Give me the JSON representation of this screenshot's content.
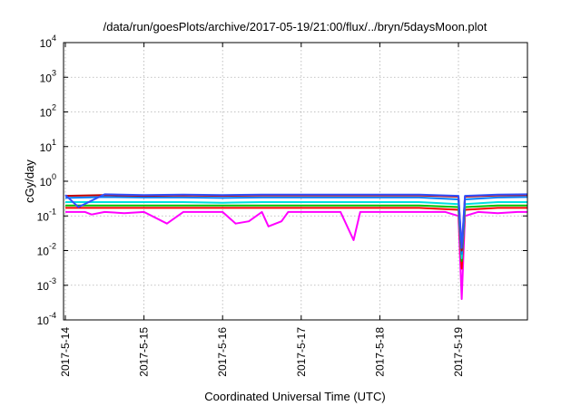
{
  "chart_data": {
    "type": "line",
    "title": "/data/run/goesPlots/archive/2017-05-19/21:00/flux/../bryn/5daysMoon.plot",
    "xlabel": "Coordinated Universal Time (UTC)",
    "ylabel": "cGy/day",
    "yscale": "log",
    "ylim": [
      0.0001,
      10000
    ],
    "xlim": [
      "2017-05-14T00:00",
      "2017-05-19T21:00"
    ],
    "grid": true,
    "x_ticks": [
      "2017-5-14",
      "2017-5-15",
      "2017-5-16",
      "2017-5-17",
      "2017-5-18",
      "2017-5-19"
    ],
    "y_ticks": [
      {
        "base": "10",
        "exp": "-4"
      },
      {
        "base": "10",
        "exp": "-3"
      },
      {
        "base": "10",
        "exp": "-2"
      },
      {
        "base": "10",
        "exp": "-1"
      },
      {
        "base": "10",
        "exp": "0"
      },
      {
        "base": "10",
        "exp": "1"
      },
      {
        "base": "10",
        "exp": "2"
      },
      {
        "base": "10",
        "exp": "3"
      },
      {
        "base": "10",
        "exp": "4"
      }
    ],
    "series": [
      {
        "color": "#ff00ff",
        "values": [
          [
            "2017-05-14T00:00",
            0.13
          ],
          [
            "2017-05-14T06:00",
            0.13
          ],
          [
            "2017-05-14T08:00",
            0.11
          ],
          [
            "2017-05-14T12:00",
            0.13
          ],
          [
            "2017-05-14T18:00",
            0.12
          ],
          [
            "2017-05-15T00:00",
            0.13
          ],
          [
            "2017-05-15T07:00",
            0.06
          ],
          [
            "2017-05-15T12:00",
            0.13
          ],
          [
            "2017-05-15T18:00",
            0.13
          ],
          [
            "2017-05-16T00:00",
            0.13
          ],
          [
            "2017-05-16T04:00",
            0.06
          ],
          [
            "2017-05-16T08:00",
            0.07
          ],
          [
            "2017-05-16T12:00",
            0.13
          ],
          [
            "2017-05-16T14:00",
            0.05
          ],
          [
            "2017-05-16T18:00",
            0.07
          ],
          [
            "2017-05-16T20:00",
            0.13
          ],
          [
            "2017-05-17T00:00",
            0.13
          ],
          [
            "2017-05-17T12:00",
            0.13
          ],
          [
            "2017-05-17T16:00",
            0.02
          ],
          [
            "2017-05-17T18:00",
            0.13
          ],
          [
            "2017-05-18T00:00",
            0.13
          ],
          [
            "2017-05-18T12:00",
            0.13
          ],
          [
            "2017-05-18T20:00",
            0.13
          ],
          [
            "2017-05-19T00:00",
            0.1
          ],
          [
            "2017-05-19T01:00",
            0.0004
          ],
          [
            "2017-05-19T02:00",
            0.1
          ],
          [
            "2017-05-19T06:00",
            0.13
          ],
          [
            "2017-05-19T12:00",
            0.12
          ],
          [
            "2017-05-19T18:00",
            0.13
          ],
          [
            "2017-05-19T21:00",
            0.13
          ]
        ]
      },
      {
        "color": "#ff0000",
        "values": [
          [
            "2017-05-14T00:00",
            0.17
          ],
          [
            "2017-05-14T12:00",
            0.17
          ],
          [
            "2017-05-15T00:00",
            0.17
          ],
          [
            "2017-05-15T12:00",
            0.17
          ],
          [
            "2017-05-16T00:00",
            0.17
          ],
          [
            "2017-05-16T12:00",
            0.17
          ],
          [
            "2017-05-17T00:00",
            0.17
          ],
          [
            "2017-05-17T12:00",
            0.17
          ],
          [
            "2017-05-18T00:00",
            0.17
          ],
          [
            "2017-05-18T12:00",
            0.17
          ],
          [
            "2017-05-19T00:00",
            0.15
          ],
          [
            "2017-05-19T01:00",
            0.003
          ],
          [
            "2017-05-19T02:00",
            0.15
          ],
          [
            "2017-05-19T12:00",
            0.17
          ],
          [
            "2017-05-19T21:00",
            0.17
          ]
        ]
      },
      {
        "color": "#00c000",
        "values": [
          [
            "2017-05-14T00:00",
            0.2
          ],
          [
            "2017-05-14T12:00",
            0.2
          ],
          [
            "2017-05-15T00:00",
            0.2
          ],
          [
            "2017-05-15T12:00",
            0.2
          ],
          [
            "2017-05-16T00:00",
            0.2
          ],
          [
            "2017-05-16T12:00",
            0.2
          ],
          [
            "2017-05-17T00:00",
            0.2
          ],
          [
            "2017-05-17T12:00",
            0.2
          ],
          [
            "2017-05-18T00:00",
            0.2
          ],
          [
            "2017-05-18T12:00",
            0.2
          ],
          [
            "2017-05-19T00:00",
            0.18
          ],
          [
            "2017-05-19T01:00",
            0.005
          ],
          [
            "2017-05-19T02:00",
            0.18
          ],
          [
            "2017-05-19T12:00",
            0.2
          ],
          [
            "2017-05-19T21:00",
            0.2
          ]
        ]
      },
      {
        "color": "#00e0e0",
        "values": [
          [
            "2017-05-14T00:00",
            0.25
          ],
          [
            "2017-05-14T12:00",
            0.25
          ],
          [
            "2017-05-15T00:00",
            0.25
          ],
          [
            "2017-05-15T12:00",
            0.25
          ],
          [
            "2017-05-16T00:00",
            0.24
          ],
          [
            "2017-05-16T12:00",
            0.25
          ],
          [
            "2017-05-17T00:00",
            0.25
          ],
          [
            "2017-05-17T12:00",
            0.25
          ],
          [
            "2017-05-18T00:00",
            0.25
          ],
          [
            "2017-05-18T12:00",
            0.25
          ],
          [
            "2017-05-19T00:00",
            0.22
          ],
          [
            "2017-05-19T01:00",
            0.006
          ],
          [
            "2017-05-19T02:00",
            0.22
          ],
          [
            "2017-05-19T12:00",
            0.25
          ],
          [
            "2017-05-19T21:00",
            0.25
          ]
        ]
      },
      {
        "color": "#0080ff",
        "values": [
          [
            "2017-05-14T00:00",
            0.33
          ],
          [
            "2017-05-14T12:00",
            0.35
          ],
          [
            "2017-05-15T00:00",
            0.34
          ],
          [
            "2017-05-15T12:00",
            0.34
          ],
          [
            "2017-05-16T00:00",
            0.33
          ],
          [
            "2017-05-16T12:00",
            0.34
          ],
          [
            "2017-05-17T00:00",
            0.34
          ],
          [
            "2017-05-17T12:00",
            0.34
          ],
          [
            "2017-05-18T00:00",
            0.34
          ],
          [
            "2017-05-18T12:00",
            0.34
          ],
          [
            "2017-05-19T00:00",
            0.3
          ],
          [
            "2017-05-19T01:00",
            0.008
          ],
          [
            "2017-05-19T02:00",
            0.3
          ],
          [
            "2017-05-19T12:00",
            0.34
          ],
          [
            "2017-05-19T21:00",
            0.35
          ]
        ]
      },
      {
        "color": "#c00000",
        "values": [
          [
            "2017-05-14T00:00",
            0.38
          ],
          [
            "2017-05-14T12:00",
            0.4
          ],
          [
            "2017-05-15T00:00",
            0.38
          ],
          [
            "2017-05-15T12:00",
            0.39
          ],
          [
            "2017-05-16T00:00",
            0.38
          ],
          [
            "2017-05-16T12:00",
            0.39
          ],
          [
            "2017-05-17T00:00",
            0.39
          ],
          [
            "2017-05-17T12:00",
            0.39
          ],
          [
            "2017-05-18T00:00",
            0.39
          ],
          [
            "2017-05-18T12:00",
            0.39
          ],
          [
            "2017-05-19T00:00",
            0.36
          ],
          [
            "2017-05-19T01:00",
            0.01
          ],
          [
            "2017-05-19T02:00",
            0.36
          ],
          [
            "2017-05-19T12:00",
            0.39
          ],
          [
            "2017-05-19T21:00",
            0.4
          ]
        ]
      },
      {
        "color": "#3050ff",
        "values": [
          [
            "2017-05-14T00:00",
            0.4
          ],
          [
            "2017-05-14T04:00",
            0.18
          ],
          [
            "2017-05-14T12:00",
            0.42
          ],
          [
            "2017-05-15T00:00",
            0.4
          ],
          [
            "2017-05-15T12:00",
            0.41
          ],
          [
            "2017-05-16T00:00",
            0.4
          ],
          [
            "2017-05-16T12:00",
            0.41
          ],
          [
            "2017-05-17T00:00",
            0.41
          ],
          [
            "2017-05-17T12:00",
            0.41
          ],
          [
            "2017-05-18T00:00",
            0.41
          ],
          [
            "2017-05-18T12:00",
            0.41
          ],
          [
            "2017-05-19T00:00",
            0.38
          ],
          [
            "2017-05-19T01:00",
            0.012
          ],
          [
            "2017-05-19T02:00",
            0.38
          ],
          [
            "2017-05-19T12:00",
            0.41
          ],
          [
            "2017-05-19T21:00",
            0.42
          ]
        ]
      }
    ]
  }
}
